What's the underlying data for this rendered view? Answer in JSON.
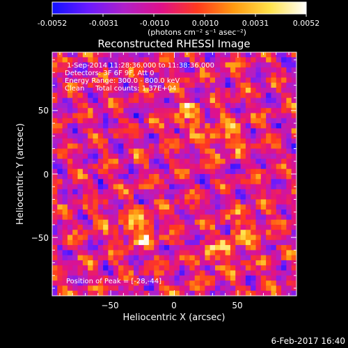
{
  "colorbar": {
    "ticks": [
      "-0.0052",
      "-0.0031",
      "-0.0010",
      "0.0010",
      "0.0031",
      "0.0052"
    ],
    "unit_label": "(photons cm⁻² s⁻¹ asec⁻²)",
    "colors": [
      "#1212ff",
      "#6a1aff",
      "#b020c8",
      "#e0108a",
      "#ff3a1e",
      "#ff9a10",
      "#ffe24a",
      "#ffffff"
    ]
  },
  "plot": {
    "title": "Reconstructed RHESSI Image",
    "info_lines": [
      " 1-Sep-2014 11:28:36.000 to 11:38:36.000",
      "Detectors: 3F 6F 9F, Att 0",
      "Energy Range: 300.0 - 800.0 keV",
      "Clean     Total counts: 1.37E+04"
    ],
    "peak_text": "Position of Peak = [-28,-44]"
  },
  "footer": {
    "timestamp": "6-Feb-2017 16:40"
  },
  "chart_data": {
    "type": "heatmap",
    "title": "Reconstructed RHESSI Image",
    "xlabel": "Heliocentric X (arcsec)",
    "ylabel": "Heliocentric Y (arcsec)",
    "xlim": [
      -96,
      96
    ],
    "ylim": [
      -96,
      96
    ],
    "x_ticks": [
      -50,
      0,
      50
    ],
    "y_ticks": [
      -50,
      0,
      50
    ],
    "colorbar_range": [
      -0.0052,
      0.0052
    ],
    "peak": [
      -28,
      -44
    ],
    "bright_sources": [
      [
        -28,
        -44
      ],
      [
        12,
        45
      ],
      [
        40,
        30
      ],
      [
        55,
        -45
      ],
      [
        35,
        -65
      ]
    ]
  }
}
